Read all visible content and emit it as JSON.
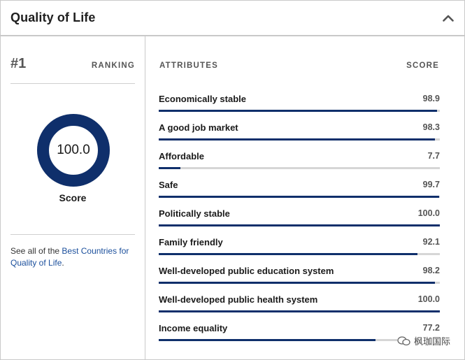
{
  "header": {
    "title": "Quality of Life",
    "collapse_icon": "chevron-up-icon"
  },
  "ranking": {
    "rank": "#1",
    "label": "RANKING"
  },
  "score": {
    "value": "100.0",
    "fraction": 1.0,
    "label": "Score",
    "ring_color": "#0f2f6b"
  },
  "see_all": {
    "prefix": "See all of the ",
    "link": "Best Countries for Quality of Life",
    "suffix": "."
  },
  "attributes": {
    "col_attr": "ATTRIBUTES",
    "col_score": "SCORE",
    "bar_color": "#0f2f6b",
    "track_color": "#d6d6d6",
    "rows": [
      {
        "name": "Economically stable",
        "value": "98.9",
        "fraction": 0.989
      },
      {
        "name": "A good job market",
        "value": "98.3",
        "fraction": 0.983
      },
      {
        "name": "Affordable",
        "value": "7.7",
        "fraction": 0.077
      },
      {
        "name": "Safe",
        "value": "99.7",
        "fraction": 0.997
      },
      {
        "name": "Politically stable",
        "value": "100.0",
        "fraction": 1.0
      },
      {
        "name": "Family friendly",
        "value": "92.1",
        "fraction": 0.921
      },
      {
        "name": "Well-developed public education system",
        "value": "98.2",
        "fraction": 0.982
      },
      {
        "name": "Well-developed public health system",
        "value": "100.0",
        "fraction": 1.0
      },
      {
        "name": "Income equality",
        "value": "77.2",
        "fraction": 0.772
      }
    ]
  },
  "watermark": {
    "text": "枫珈国际",
    "icon": "wechat-icon"
  }
}
